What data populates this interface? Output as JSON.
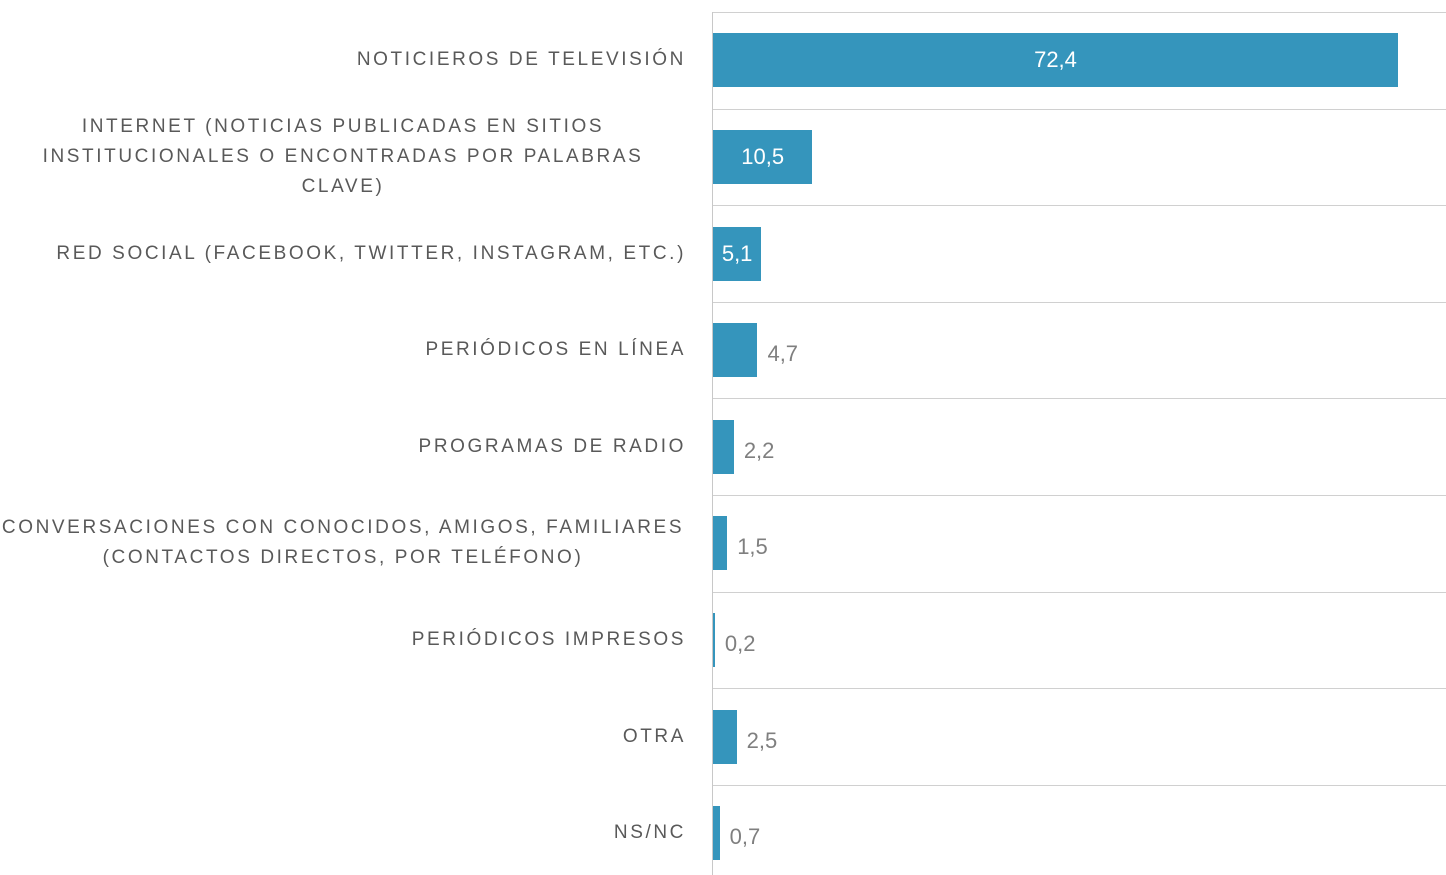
{
  "chart_data": {
    "type": "bar",
    "orientation": "horizontal",
    "categories": [
      "NOTICIEROS DE TELEVISIÓN",
      "INTERNET (NOTICIAS PUBLICADAS EN SITIOS INSTITUCIONALES O ENCONTRADAS POR PALABRAS CLAVE)",
      "RED SOCIAL (FACEBOOK, TWITTER, INSTAGRAM, ETC.)",
      "PERIÓDICOS EN LÍNEA",
      "PROGRAMAS DE RADIO",
      "CONVERSACIONES CON CONOCIDOS, AMIGOS, FAMILIARES (CONTACTOS DIRECTOS, POR TELÉFONO)",
      "PERIÓDICOS IMPRESOS",
      "OTRA",
      "NS/NC"
    ],
    "values": [
      72.4,
      10.5,
      5.1,
      4.7,
      2.2,
      1.5,
      0.2,
      2.5,
      0.7
    ],
    "value_labels": [
      "72,4",
      "10,5",
      "5,1",
      "4,7",
      "2,2",
      "1,5",
      "0,2",
      "2,5",
      "0,7"
    ],
    "color": "#3595bc",
    "grid": true
  }
}
